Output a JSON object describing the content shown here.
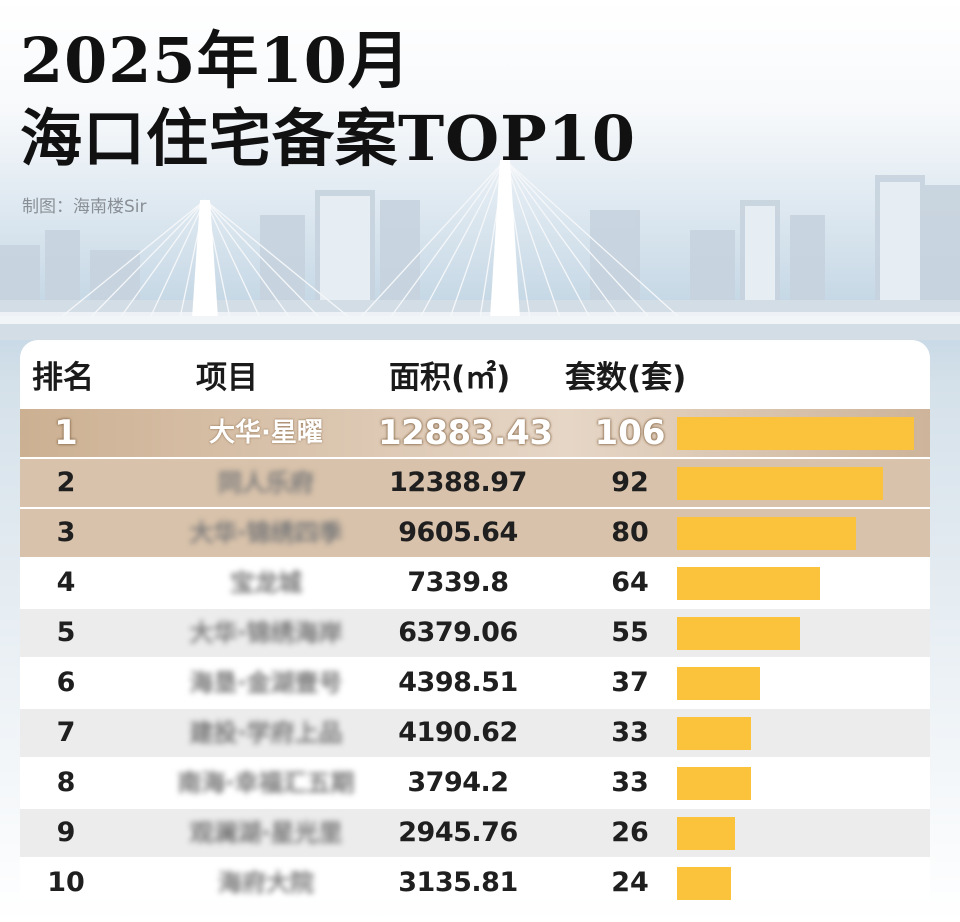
{
  "header": {
    "title_line1": "2025年10月",
    "title_line2": "海口住宅备案TOP10",
    "credit": "制图：海南楼Sir"
  },
  "colors": {
    "bar": "#fbc33c",
    "highlight_row": "#d8c2ab",
    "stripe_row": "#ececec"
  },
  "chart_data": {
    "type": "table",
    "title": "2025年10月 海口住宅备案TOP10",
    "columns": [
      "排名",
      "项目",
      "面积(㎡)",
      "套数(套)"
    ],
    "rows": [
      {
        "rank": "1",
        "name": "大华·星曜",
        "area": "12883.43",
        "count": "106"
      },
      {
        "rank": "2",
        "name": "同人乐府",
        "area": "12388.97",
        "count": "92"
      },
      {
        "rank": "3",
        "name": "大华·锦绣四季",
        "area": "9605.64",
        "count": "80"
      },
      {
        "rank": "4",
        "name": "宝龙城",
        "area": "7339.8",
        "count": "64"
      },
      {
        "rank": "5",
        "name": "大华·锦绣海岸",
        "area": "6379.06",
        "count": "55"
      },
      {
        "rank": "6",
        "name": "海垦·金湖壹号",
        "area": "4398.51",
        "count": "37"
      },
      {
        "rank": "7",
        "name": "建投·学府上品",
        "area": "4190.62",
        "count": "33"
      },
      {
        "rank": "8",
        "name": "南海·幸福汇五期",
        "area": "3794.2",
        "count": "33"
      },
      {
        "rank": "9",
        "name": "观澜湖·星光里",
        "area": "2945.76",
        "count": "26"
      },
      {
        "rank": "10",
        "name": "海府大院",
        "area": "3135.81",
        "count": "24"
      }
    ],
    "bar_metric": "count",
    "bar_max": 106
  }
}
